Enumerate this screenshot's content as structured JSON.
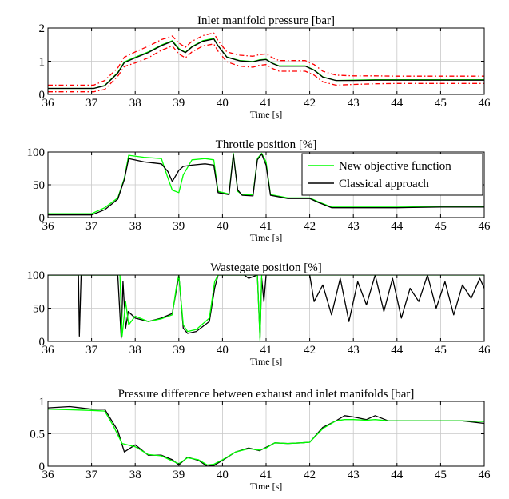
{
  "chart_data": [
    {
      "type": "line",
      "title": "Inlet manifold pressure [bar]",
      "xlabel": "Time [s]",
      "ylabel": "",
      "xlim": [
        36,
        46
      ],
      "ylim": [
        0,
        2
      ],
      "xticks": [
        36,
        37,
        38,
        39,
        40,
        41,
        42,
        43,
        44,
        45,
        46
      ],
      "yticks": [
        0,
        1,
        2
      ],
      "grid": true,
      "series": [
        {
          "color": "#ff0000",
          "style": "dashdot",
          "x": [
            36,
            37.05,
            37.3,
            37.6,
            37.75,
            38.0,
            38.3,
            38.6,
            38.85,
            39.0,
            39.15,
            39.3,
            39.55,
            39.8,
            39.9,
            40.1,
            40.4,
            40.7,
            40.85,
            41.0,
            41.15,
            41.3,
            41.6,
            41.9,
            42.1,
            42.3,
            42.6,
            43.0,
            43.5,
            44,
            45,
            46
          ],
          "y": [
            0.28,
            0.28,
            0.42,
            0.8,
            1.12,
            1.28,
            1.45,
            1.65,
            1.76,
            1.55,
            1.42,
            1.6,
            1.77,
            1.85,
            1.62,
            1.28,
            1.18,
            1.15,
            1.2,
            1.22,
            1.1,
            1.02,
            1.02,
            1.02,
            0.9,
            0.7,
            0.58,
            0.56,
            0.56,
            0.55,
            0.55,
            0.55
          ]
        },
        {
          "color": "#ff0000",
          "style": "dashdot",
          "x": [
            36,
            37.05,
            37.3,
            37.6,
            37.75,
            38.0,
            38.3,
            38.6,
            38.85,
            39.0,
            39.15,
            39.3,
            39.55,
            39.8,
            39.9,
            40.1,
            40.4,
            40.7,
            40.85,
            41.0,
            41.15,
            41.3,
            41.6,
            41.9,
            42.1,
            42.3,
            42.6,
            43.0,
            43.5,
            44,
            45,
            46
          ],
          "y": [
            0.08,
            0.08,
            0.15,
            0.55,
            0.84,
            0.95,
            1.1,
            1.33,
            1.46,
            1.22,
            1.1,
            1.28,
            1.46,
            1.52,
            1.3,
            0.98,
            0.85,
            0.82,
            0.88,
            0.9,
            0.78,
            0.7,
            0.7,
            0.7,
            0.58,
            0.38,
            0.28,
            0.3,
            0.32,
            0.33,
            0.33,
            0.33
          ]
        },
        {
          "color": "#00ff00",
          "x": [
            36,
            37.05,
            37.3,
            37.6,
            37.75,
            38.0,
            38.3,
            38.6,
            38.85,
            39.0,
            39.15,
            39.3,
            39.55,
            39.8,
            39.9,
            40.1,
            40.4,
            40.7,
            40.85,
            41.0,
            41.15,
            41.3,
            41.6,
            41.9,
            42.1,
            42.3,
            42.6,
            43.0,
            43.5,
            44,
            45,
            46
          ],
          "y": [
            0.18,
            0.18,
            0.27,
            0.66,
            0.98,
            1.12,
            1.28,
            1.49,
            1.62,
            1.38,
            1.27,
            1.44,
            1.62,
            1.69,
            1.47,
            1.13,
            1.02,
            0.99,
            1.04,
            1.06,
            0.94,
            0.86,
            0.86,
            0.86,
            0.74,
            0.53,
            0.42,
            0.43,
            0.44,
            0.44,
            0.44,
            0.44
          ]
        },
        {
          "color": "#000000",
          "x": [
            36,
            37.05,
            37.3,
            37.6,
            37.75,
            38.0,
            38.3,
            38.6,
            38.85,
            39.0,
            39.15,
            39.3,
            39.55,
            39.8,
            39.9,
            40.1,
            40.4,
            40.7,
            40.85,
            41.0,
            41.15,
            41.3,
            41.6,
            41.9,
            42.1,
            42.3,
            42.6,
            43.0,
            43.5,
            44,
            45,
            46
          ],
          "y": [
            0.18,
            0.18,
            0.26,
            0.64,
            0.96,
            1.1,
            1.26,
            1.47,
            1.6,
            1.36,
            1.26,
            1.43,
            1.6,
            1.67,
            1.46,
            1.12,
            1.01,
            0.98,
            1.03,
            1.05,
            0.93,
            0.85,
            0.85,
            0.85,
            0.73,
            0.52,
            0.42,
            0.42,
            0.43,
            0.43,
            0.43,
            0.43
          ]
        }
      ]
    },
    {
      "type": "line",
      "title": "Throttle position [%]",
      "xlabel": "Time [s]",
      "ylabel": "",
      "xlim": [
        36,
        46
      ],
      "ylim": [
        0,
        100
      ],
      "xticks": [
        36,
        37,
        38,
        39,
        40,
        41,
        42,
        43,
        44,
        45,
        46
      ],
      "yticks": [
        0,
        50,
        100
      ],
      "grid": true,
      "legend": {
        "position": "top-right",
        "entries": [
          "New objective function",
          "Classical approach"
        ]
      },
      "series": [
        {
          "name": "New objective function",
          "color": "#00ff00",
          "x": [
            36,
            37.0,
            37.3,
            37.6,
            37.75,
            37.85,
            38.2,
            38.6,
            38.75,
            38.85,
            39.0,
            39.1,
            39.3,
            39.6,
            39.8,
            39.9,
            40.15,
            40.25,
            40.35,
            40.45,
            40.7,
            40.8,
            40.9,
            41.0,
            41.1,
            41.5,
            41.8,
            42.0,
            42.2,
            42.5,
            43,
            44,
            45,
            46
          ],
          "y": [
            6,
            6,
            15,
            30,
            60,
            95,
            92,
            90,
            60,
            42,
            38,
            65,
            88,
            90,
            88,
            40,
            36,
            98,
            40,
            35,
            35,
            90,
            98,
            85,
            35,
            30,
            30,
            30,
            24,
            16,
            16,
            16,
            17,
            17
          ]
        },
        {
          "name": "Classical approach",
          "color": "#000000",
          "x": [
            36,
            37.0,
            37.3,
            37.6,
            37.75,
            37.85,
            38.2,
            38.6,
            38.75,
            38.85,
            39.0,
            39.1,
            39.3,
            39.6,
            39.8,
            39.9,
            40.15,
            40.25,
            40.35,
            40.45,
            40.7,
            40.8,
            40.9,
            41.0,
            41.1,
            41.5,
            41.8,
            42.0,
            42.2,
            42.5,
            43,
            44,
            45,
            46
          ],
          "y": [
            4,
            4,
            12,
            28,
            58,
            90,
            85,
            82,
            70,
            55,
            72,
            78,
            80,
            82,
            80,
            38,
            35,
            96,
            42,
            34,
            33,
            88,
            97,
            80,
            34,
            29,
            29,
            29,
            23,
            15,
            15,
            15,
            16,
            16
          ]
        }
      ]
    },
    {
      "type": "line",
      "title": "Wastegate position [%]",
      "xlabel": "Time [s]",
      "ylabel": "",
      "xlim": [
        36,
        46
      ],
      "ylim": [
        0,
        100
      ],
      "xticks": [
        36,
        37,
        38,
        39,
        40,
        41,
        42,
        43,
        44,
        45,
        46
      ],
      "yticks": [
        0,
        50,
        100
      ],
      "grid": true,
      "series": [
        {
          "color": "#000000",
          "x": [
            36,
            36.7,
            36.72,
            36.76,
            36.8,
            37.6,
            37.68,
            37.72,
            37.78,
            37.84,
            38.0,
            38.3,
            38.6,
            38.85,
            38.95,
            39.0,
            39.1,
            39.2,
            39.4,
            39.7,
            39.82,
            39.9,
            40.0,
            40.5,
            40.6,
            40.8,
            40.86,
            40.9,
            40.95,
            41.0,
            41.1,
            42.0,
            42.1,
            42.3,
            42.5,
            42.7,
            42.9,
            43.1,
            43.3,
            43.5,
            43.7,
            43.9,
            44.1,
            44.3,
            44.5,
            44.7,
            44.9,
            45.1,
            45.3,
            45.5,
            45.7,
            45.9,
            46
          ],
          "y": [
            100,
            100,
            8,
            100,
            100,
            100,
            5,
            90,
            20,
            45,
            35,
            30,
            35,
            42,
            80,
            100,
            20,
            12,
            15,
            30,
            80,
            100,
            100,
            100,
            95,
            100,
            5,
            95,
            60,
            100,
            100,
            100,
            60,
            85,
            40,
            95,
            30,
            90,
            55,
            100,
            45,
            95,
            35,
            80,
            60,
            100,
            50,
            90,
            40,
            85,
            65,
            95,
            80
          ]
        },
        {
          "color": "#00ff00",
          "x": [
            36,
            37.65,
            37.7,
            37.78,
            37.85,
            38.0,
            38.3,
            38.6,
            38.85,
            38.95,
            39.0,
            39.1,
            39.2,
            39.4,
            39.7,
            39.82,
            39.9,
            40.0,
            40.8,
            40.86,
            40.9,
            41.0,
            46
          ],
          "y": [
            100,
            100,
            8,
            60,
            25,
            38,
            30,
            34,
            40,
            85,
            100,
            25,
            15,
            18,
            35,
            90,
            100,
            100,
            100,
            2,
            100,
            100,
            100
          ]
        }
      ]
    },
    {
      "type": "line",
      "title": "Pressure difference between exhaust and inlet manifolds [bar]",
      "xlabel": "Time [s]",
      "ylabel": "",
      "xlim": [
        36,
        46
      ],
      "ylim": [
        0,
        1
      ],
      "xticks": [
        36,
        37,
        38,
        39,
        40,
        41,
        42,
        43,
        44,
        45,
        46
      ],
      "yticks": [
        0,
        0.5,
        1
      ],
      "grid": true,
      "series": [
        {
          "color": "#000000",
          "x": [
            36,
            36.5,
            37,
            37.3,
            37.6,
            37.75,
            38.0,
            38.3,
            38.6,
            38.85,
            39.0,
            39.2,
            39.45,
            39.65,
            39.8,
            40.0,
            40.3,
            40.6,
            40.85,
            41.0,
            41.2,
            41.5,
            41.8,
            42.0,
            42.3,
            42.6,
            42.8,
            43.0,
            43.3,
            43.5,
            43.8,
            44,
            44.5,
            45,
            45.5,
            46
          ],
          "y": [
            0.9,
            0.92,
            0.88,
            0.88,
            0.55,
            0.22,
            0.33,
            0.17,
            0.17,
            0.1,
            0.02,
            0.14,
            0.09,
            0.0,
            0.01,
            0.09,
            0.22,
            0.28,
            0.24,
            0.29,
            0.36,
            0.35,
            0.36,
            0.37,
            0.6,
            0.7,
            0.78,
            0.76,
            0.72,
            0.78,
            0.7,
            0.7,
            0.7,
            0.7,
            0.7,
            0.66
          ]
        },
        {
          "color": "#00ff00",
          "x": [
            36,
            36.5,
            37,
            37.3,
            37.5,
            37.7,
            38.0,
            38.3,
            38.6,
            38.85,
            39.0,
            39.2,
            39.45,
            39.65,
            39.8,
            40.0,
            40.3,
            40.6,
            40.85,
            41.0,
            41.2,
            41.5,
            41.8,
            42.0,
            42.3,
            42.6,
            42.8,
            43.0,
            43.3,
            43.5,
            43.8,
            44,
            44.5,
            45,
            45.5,
            46
          ],
          "y": [
            0.88,
            0.87,
            0.86,
            0.85,
            0.62,
            0.35,
            0.3,
            0.18,
            0.16,
            0.08,
            0.04,
            0.13,
            0.1,
            0.02,
            0.03,
            0.1,
            0.22,
            0.27,
            0.25,
            0.28,
            0.36,
            0.35,
            0.36,
            0.37,
            0.58,
            0.7,
            0.72,
            0.72,
            0.71,
            0.72,
            0.7,
            0.7,
            0.7,
            0.7,
            0.7,
            0.69
          ]
        }
      ]
    }
  ]
}
